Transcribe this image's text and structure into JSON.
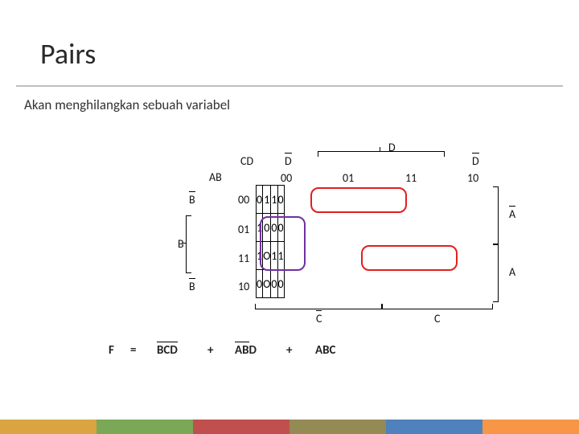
{
  "title": "Pairs",
  "subtitle": "Akan menghilangkan sebuah variabel",
  "kmap": {
    "corner_label": "CD",
    "side_label": "AB",
    "col_headers": [
      "00",
      "01",
      "11",
      "10"
    ],
    "row_headers": [
      "00",
      "01",
      "11",
      "10"
    ],
    "top_labels": {
      "l": "D",
      "m": "D",
      "r": "D"
    },
    "left_labels": {
      "t": "B",
      "m": "B",
      "b": "B"
    },
    "right_labels": {
      "t": "A",
      "b": "A"
    },
    "bottom_labels": {
      "l": "C",
      "r": "C"
    },
    "cells": [
      [
        "0",
        "1",
        "1",
        "0"
      ],
      [
        "1",
        "0",
        "0",
        "0"
      ],
      [
        "1",
        "O",
        "1",
        "1"
      ],
      [
        "0",
        "O",
        "0",
        "0"
      ]
    ]
  },
  "equation": {
    "lhs": "F",
    "eq": "=",
    "terms": [
      "BCD",
      "ABD",
      "ABC"
    ],
    "term_overbars": [
      [
        0,
        1,
        2
      ],
      [
        0,
        1
      ],
      []
    ],
    "plus": "+"
  },
  "pairs": [
    {
      "row": 0,
      "col": 1,
      "span": 2,
      "dir": "h",
      "color": "#e02020"
    },
    {
      "row": 1,
      "col": 0,
      "span": 2,
      "dir": "v",
      "color": "#7030a0"
    },
    {
      "row": 2,
      "col": 2,
      "span": 2,
      "dir": "h",
      "color": "#e02020"
    }
  ],
  "accent_colors": [
    "#d9a441",
    "#7aa856",
    "#c0504d",
    "#948a54",
    "#4f81bd",
    "#f79646"
  ]
}
